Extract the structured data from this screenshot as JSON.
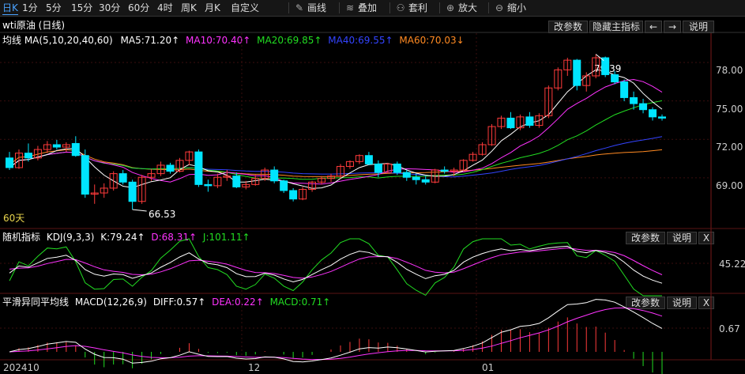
{
  "toolbar": {
    "periods": [
      "日K",
      "1分",
      "5分",
      "15分",
      "30分",
      "60分",
      "4时",
      "周K",
      "月K",
      "自定义"
    ],
    "active_period": "日K",
    "tools": [
      {
        "label": "画线",
        "icon": "pencil-icon"
      },
      {
        "label": "叠加",
        "icon": "stack-icon"
      },
      {
        "label": "套利",
        "icon": "person-icon"
      },
      {
        "label": "放大",
        "icon": "zoom-in-icon"
      },
      {
        "label": "缩小",
        "icon": "zoom-out-icon"
      }
    ]
  },
  "title": "wti原油 (日线)",
  "main_panel": {
    "buttons": {
      "params": "改参数",
      "hide": "隐藏主指标",
      "prev": "←",
      "next": "→",
      "help": "说明"
    },
    "ma_label": "均线 MA(5,10,20,40,60)",
    "ma": [
      {
        "label": "MA5:71.20↑",
        "color": "#ffffff"
      },
      {
        "label": "MA10:70.40↑",
        "color": "#ff33ff"
      },
      {
        "label": "MA20:69.85↑",
        "color": "#22dd22"
      },
      {
        "label": "MA40:69.55↑",
        "color": "#3344ff"
      },
      {
        "label": "MA60:70.03↓",
        "color": "#ff8a22"
      }
    ],
    "y_ticks": [
      "78.00",
      "75.00",
      "72.00",
      "69.00"
    ],
    "high_label": "79.39",
    "low_label": "66.53",
    "period_note": "60天"
  },
  "kdj_panel": {
    "label": "随机指标",
    "params": "KDJ(9,3,3)",
    "values": [
      {
        "label": "K:79.24↑",
        "color": "#ffffff"
      },
      {
        "label": "D:68.31↑",
        "color": "#ff33ff"
      },
      {
        "label": "J:101.11↑",
        "color": "#22dd22"
      }
    ],
    "y_ticks": [
      "45.22"
    ],
    "buttons": {
      "params": "改参数",
      "help": "说明",
      "close": "X"
    }
  },
  "macd_panel": {
    "label": "平滑异同平均线",
    "params": "MACD(12,26,9)",
    "values": [
      {
        "label": "DIFF:0.57↑",
        "color": "#ffffff"
      },
      {
        "label": "DEA:0.22↑",
        "color": "#ff33ff"
      },
      {
        "label": "MACD:0.71↑",
        "color": "#22dd22"
      }
    ],
    "y_ticks": [
      "0.67"
    ],
    "buttons": {
      "params": "改参数",
      "help": "说明",
      "close": "X"
    }
  },
  "x_axis": [
    "202410",
    "12",
    "01"
  ],
  "colors": {
    "up": "#ff3b3b",
    "down": "#00e5ff",
    "ma5": "#ffffff",
    "ma10": "#ff33ff",
    "ma20": "#22dd22",
    "ma40": "#3344ff",
    "ma60": "#ff8a22"
  },
  "chart_data": {
    "type": "candlestick",
    "candles": [
      [
        70.8,
        71.3,
        69.8,
        70.0
      ],
      [
        70.0,
        71.5,
        69.9,
        71.2
      ],
      [
        71.2,
        72.0,
        70.5,
        70.8
      ],
      [
        70.8,
        71.8,
        70.6,
        71.5
      ],
      [
        71.5,
        72.2,
        71.2,
        71.9
      ],
      [
        71.9,
        72.3,
        71.5,
        71.7
      ],
      [
        71.7,
        72.1,
        71.3,
        71.9
      ],
      [
        72.0,
        72.6,
        70.9,
        71.0
      ],
      [
        71.0,
        71.5,
        67.5,
        67.8
      ],
      [
        67.8,
        68.6,
        67.0,
        67.9
      ],
      [
        67.9,
        68.7,
        67.5,
        68.3
      ],
      [
        68.3,
        69.7,
        68.1,
        69.5
      ],
      [
        69.5,
        69.8,
        68.6,
        68.8
      ],
      [
        68.8,
        69.0,
        66.53,
        67.2
      ],
      [
        67.2,
        69.4,
        67.0,
        69.2
      ],
      [
        69.2,
        69.9,
        68.9,
        69.5
      ],
      [
        69.5,
        70.5,
        69.3,
        70.2
      ],
      [
        70.2,
        70.4,
        69.5,
        69.7
      ],
      [
        69.7,
        70.8,
        69.6,
        70.6
      ],
      [
        70.6,
        71.4,
        70.2,
        71.3
      ],
      [
        71.3,
        71.5,
        68.4,
        68.6
      ],
      [
        68.6,
        69.0,
        68.0,
        68.5
      ],
      [
        68.5,
        69.5,
        68.3,
        69.2
      ],
      [
        69.2,
        69.8,
        68.9,
        69.3
      ],
      [
        69.3,
        69.6,
        68.3,
        68.4
      ],
      [
        68.4,
        68.9,
        68.2,
        68.6
      ],
      [
        68.6,
        69.4,
        68.5,
        69.1
      ],
      [
        69.1,
        70.0,
        68.9,
        69.8
      ],
      [
        69.8,
        70.1,
        68.7,
        68.9
      ],
      [
        68.9,
        69.0,
        67.9,
        68.1
      ],
      [
        68.1,
        68.3,
        67.2,
        67.4
      ],
      [
        67.4,
        68.4,
        67.3,
        68.2
      ],
      [
        68.2,
        68.9,
        68.0,
        68.8
      ],
      [
        68.8,
        69.3,
        68.6,
        69.1
      ],
      [
        69.1,
        69.5,
        68.8,
        69.3
      ],
      [
        69.3,
        70.3,
        69.1,
        70.1
      ],
      [
        70.1,
        70.6,
        69.9,
        70.5
      ],
      [
        70.5,
        71.1,
        70.3,
        71.0
      ],
      [
        71.0,
        71.3,
        70.2,
        70.3
      ],
      [
        70.3,
        70.6,
        69.2,
        69.6
      ],
      [
        69.6,
        70.4,
        69.5,
        70.3
      ],
      [
        70.3,
        70.5,
        69.4,
        69.6
      ],
      [
        69.6,
        69.8,
        68.9,
        69.2
      ],
      [
        69.2,
        69.5,
        68.6,
        69.0
      ],
      [
        69.0,
        69.3,
        68.6,
        68.8
      ],
      [
        68.8,
        69.9,
        68.7,
        69.8
      ],
      [
        69.8,
        70.1,
        69.5,
        69.7
      ],
      [
        69.7,
        70.0,
        69.3,
        69.8
      ],
      [
        69.8,
        70.7,
        69.7,
        70.6
      ],
      [
        70.6,
        71.3,
        70.5,
        71.1
      ],
      [
        71.1,
        72.1,
        71.0,
        71.9
      ],
      [
        71.9,
        73.6,
        71.8,
        73.4
      ],
      [
        73.4,
        74.3,
        73.2,
        74.1
      ],
      [
        74.1,
        74.6,
        73.2,
        73.3
      ],
      [
        73.3,
        74.4,
        73.1,
        74.2
      ],
      [
        74.2,
        74.6,
        73.3,
        73.5
      ],
      [
        73.5,
        74.5,
        73.3,
        74.3
      ],
      [
        74.3,
        76.8,
        74.1,
        76.6
      ],
      [
        76.6,
        78.3,
        76.4,
        78.1
      ],
      [
        78.1,
        79.1,
        77.6,
        78.9
      ],
      [
        78.9,
        79.0,
        76.4,
        76.8
      ],
      [
        76.8,
        77.9,
        76.3,
        77.6
      ],
      [
        77.6,
        79.39,
        77.4,
        79.1
      ],
      [
        79.1,
        79.2,
        77.5,
        77.7
      ],
      [
        77.7,
        78.0,
        76.9,
        77.1
      ],
      [
        77.1,
        77.3,
        75.5,
        75.8
      ],
      [
        75.8,
        76.3,
        74.8,
        75.3
      ],
      [
        75.3,
        75.7,
        74.5,
        74.8
      ],
      [
        74.8,
        75.0,
        73.9,
        74.2
      ],
      [
        74.2,
        74.4,
        73.9,
        74.1
      ]
    ],
    "ylim": [
      66,
      80
    ]
  }
}
